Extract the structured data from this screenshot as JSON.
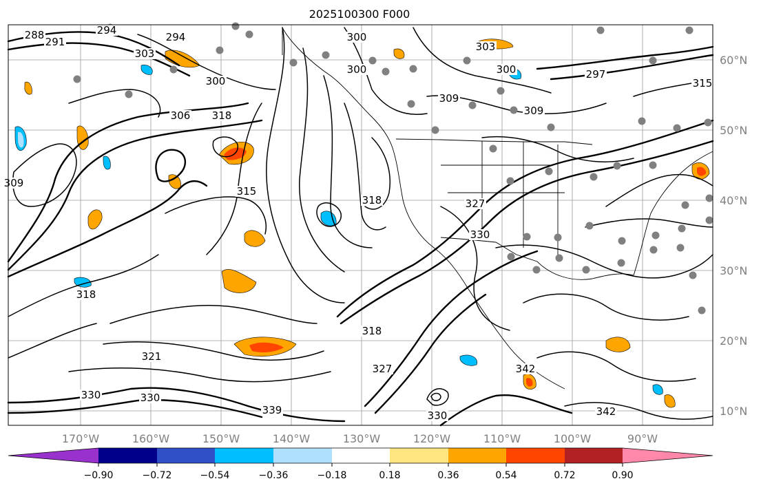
{
  "title": "2025100300 F000",
  "map": {
    "lon_labels": [
      "170°W",
      "160°W",
      "150°W",
      "140°W",
      "130°W",
      "120°W",
      "110°W",
      "100°W",
      "90°W"
    ],
    "lat_labels": [
      "60°N",
      "50°N",
      "40°N",
      "30°N",
      "20°N",
      "10°N"
    ],
    "contour_labels": [
      "288",
      "291",
      "294",
      "294",
      "303",
      "300",
      "300",
      "300",
      "303",
      "300",
      "309",
      "309",
      "297",
      "306",
      "318",
      "315",
      "309",
      "318",
      "327",
      "330",
      "318",
      "321",
      "318",
      "327",
      "330",
      "330",
      "339",
      "330",
      "342",
      "342",
      "315"
    ],
    "colors": {
      "contour": "#000000",
      "grid": "#808080",
      "coast": "#000000"
    }
  },
  "colorbar": {
    "ticks": [
      "−0.90",
      "−0.72",
      "−0.54",
      "−0.36",
      "−0.18",
      "0.18",
      "0.36",
      "0.54",
      "0.72",
      "0.90"
    ],
    "colors": [
      "#9932cc",
      "#00008b",
      "#3050c8",
      "#00bfff",
      "#b0e0ff",
      "#ffffff",
      "#ffe680",
      "#ffa500",
      "#ff4500",
      "#b22222",
      "#ff88aa"
    ]
  }
}
